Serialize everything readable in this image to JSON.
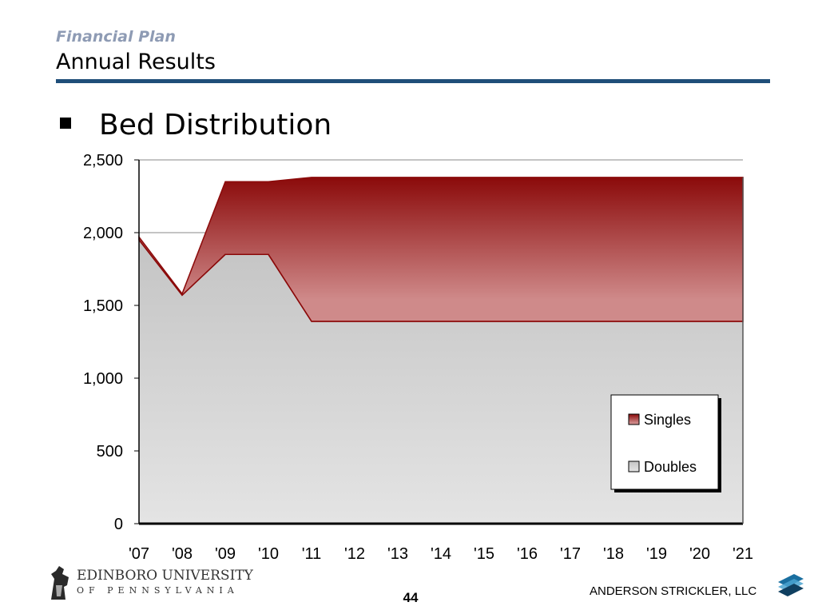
{
  "header": {
    "kicker": "Financial Plan",
    "title": "Annual Results",
    "rule_color": "#1f4e79"
  },
  "bullet": {
    "text": "Bed Distribution"
  },
  "colors": {
    "singles_top": "#8b0a0a",
    "singles_bottom": "#cf8a8a",
    "doubles_top": "#c4c4c4",
    "doubles_bottom": "#e4e4e4",
    "gridline": "#888888"
  },
  "chart_data": {
    "type": "area",
    "stacked": true,
    "title": "",
    "xlabel": "",
    "ylabel": "",
    "x": [
      "'07",
      "'08",
      "'09",
      "'10",
      "'11",
      "'12",
      "'13",
      "'14",
      "'15",
      "'16",
      "'17",
      "'18",
      "'19",
      "'20",
      "'21"
    ],
    "ylim": [
      0,
      2500
    ],
    "yticks": [
      0,
      500,
      1000,
      1500,
      2000,
      2500
    ],
    "ytick_labels": [
      "0",
      "500",
      "1,000",
      "1,500",
      "2,000",
      "2,500"
    ],
    "grid": true,
    "legend_position": "bottom-right",
    "series": [
      {
        "name": "Doubles",
        "values": [
          1950,
          1570,
          1850,
          1850,
          1390,
          1390,
          1390,
          1390,
          1390,
          1390,
          1390,
          1390,
          1390,
          1390,
          1390
        ]
      },
      {
        "name": "Singles",
        "values": [
          20,
          10,
          500,
          500,
          990,
          990,
          990,
          990,
          990,
          990,
          990,
          990,
          990,
          990,
          990
        ]
      }
    ],
    "legend_order": [
      "Singles",
      "Doubles"
    ]
  },
  "footer": {
    "university_name": "EDINBORO UNIVERSITY",
    "university_sub": "OF PENNSYLVANIA",
    "page_number": "44",
    "firm": "ANDERSON STRICKLER, LLC"
  }
}
